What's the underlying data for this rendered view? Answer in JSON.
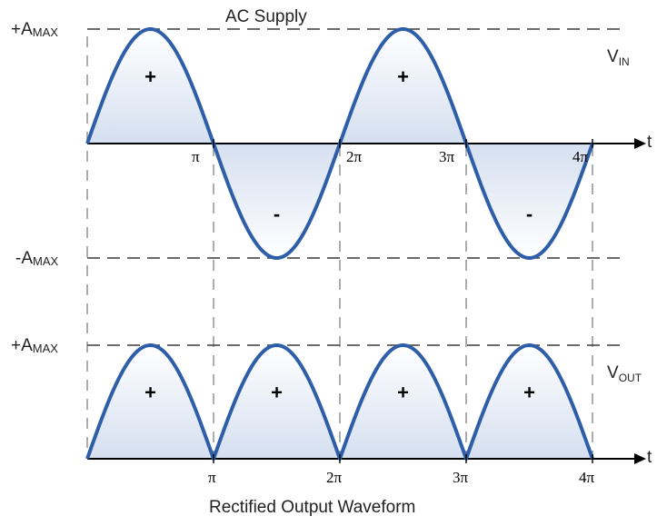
{
  "title_top": "AC Supply",
  "title_bottom": "Rectified Output Waveform",
  "levels": {
    "pos_max": "+A",
    "pos_max_sub": "MAX",
    "neg_max": "-A",
    "neg_max_sub": "MAX",
    "out_max": "+A",
    "out_max_sub": "MAX"
  },
  "signals": {
    "vin": "V",
    "vin_sub": "IN",
    "vout": "V",
    "vout_sub": "OUT"
  },
  "time_axis": "t",
  "ticks_top": [
    "π",
    "2π",
    "3π",
    "4π"
  ],
  "ticks_bottom": [
    "π",
    "2π",
    "3π",
    "4π"
  ],
  "signs_top": [
    "+",
    "-",
    "+",
    "-"
  ],
  "signs_bottom": [
    "+",
    "+",
    "+",
    "+"
  ],
  "colors": {
    "wave": "#2e5ea8",
    "fill": "#e3e9f4"
  }
}
